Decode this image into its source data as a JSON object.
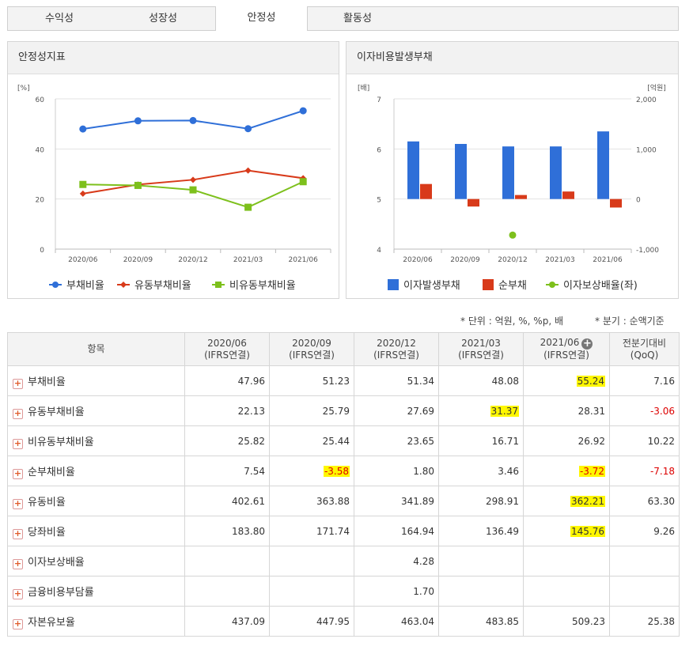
{
  "tabs": [
    "수익성",
    "성장성",
    "안정성",
    "활동성"
  ],
  "active_tab": 2,
  "left_panel": {
    "title": "안정성지표"
  },
  "right_panel": {
    "title": "이자비용발생부채"
  },
  "notes": {
    "unit": "* 단위 : 억원, %, %p, 배",
    "quarter": "* 분기 : 순액기준"
  },
  "colors": {
    "blue": "#2f6fd8",
    "red": "#d83a1a",
    "green": "#7dc01c",
    "highlight": "#fff700",
    "negative": "#dd0000"
  },
  "chart_data": [
    {
      "type": "line",
      "title": "안정성지표",
      "categories": [
        "2020/06",
        "2020/09",
        "2020/12",
        "2021/03",
        "2021/06"
      ],
      "ylabel": "[%]",
      "ylim": [
        0,
        60
      ],
      "yticks": [
        0,
        20,
        40,
        60
      ],
      "grid": true,
      "legend": "bottom",
      "series": [
        {
          "name": "부채비율",
          "color": "#2f6fd8",
          "marker": "circle",
          "values": [
            47.96,
            51.23,
            51.34,
            48.08,
            55.24
          ]
        },
        {
          "name": "유동부채비율",
          "color": "#d83a1a",
          "marker": "diamond",
          "values": [
            22.13,
            25.79,
            27.69,
            31.37,
            28.31
          ]
        },
        {
          "name": "비유동부채비율",
          "color": "#7dc01c",
          "marker": "square",
          "values": [
            25.82,
            25.44,
            23.65,
            16.71,
            26.92
          ]
        }
      ]
    },
    {
      "type": "bar",
      "title": "이자비용발생부채",
      "categories": [
        "2020/06",
        "2020/09",
        "2020/12",
        "2021/03",
        "2021/06"
      ],
      "ylabel_left": "[배]",
      "ylabel_right": "[억원]",
      "ylim_left": [
        4,
        7
      ],
      "yticks_left": [
        4,
        5,
        6,
        7
      ],
      "ylim_right": [
        -1000,
        2000
      ],
      "yticks_right": [
        "-1,000",
        "0",
        "1,000",
        "2,000"
      ],
      "legend": "bottom",
      "series": [
        {
          "name": "이자발생부채",
          "color": "#2f6fd8",
          "axis": "right",
          "values": [
            1150,
            1100,
            1050,
            1050,
            1350
          ]
        },
        {
          "name": "순부채",
          "color": "#d83a1a",
          "axis": "right",
          "values": [
            300,
            -150,
            80,
            150,
            -170
          ]
        },
        {
          "name": "이자보상배율(좌)",
          "color": "#7dc01c",
          "axis": "left",
          "type": "scatter",
          "values": [
            null,
            null,
            4.28,
            null,
            null
          ]
        }
      ]
    }
  ],
  "table": {
    "headers": [
      {
        "l1": "항목",
        "l2": ""
      },
      {
        "l1": "2020/06",
        "l2": "(IFRS연결)"
      },
      {
        "l1": "2020/09",
        "l2": "(IFRS연결)"
      },
      {
        "l1": "2020/12",
        "l2": "(IFRS연결)"
      },
      {
        "l1": "2021/03",
        "l2": "(IFRS연결)"
      },
      {
        "l1": "2021/06",
        "l2": "(IFRS연결)"
      },
      {
        "l1": "전분기대비",
        "l2": "(QoQ)"
      }
    ],
    "rows": [
      {
        "name": "부채비율",
        "values": [
          "47.96",
          "51.23",
          "51.34",
          "48.08",
          "55.24",
          "7.16"
        ]
      },
      {
        "name": "유동부채비율",
        "values": [
          "22.13",
          "25.79",
          "27.69",
          "31.37",
          "28.31",
          "-3.06"
        ]
      },
      {
        "name": "비유동부채비율",
        "values": [
          "25.82",
          "25.44",
          "23.65",
          "16.71",
          "26.92",
          "10.22"
        ]
      },
      {
        "name": "순부채비율",
        "values": [
          "7.54",
          "-3.58",
          "1.80",
          "3.46",
          "-3.72",
          "-7.18"
        ]
      },
      {
        "name": "유동비율",
        "values": [
          "402.61",
          "363.88",
          "341.89",
          "298.91",
          "362.21",
          "63.30"
        ]
      },
      {
        "name": "당좌비율",
        "values": [
          "183.80",
          "171.74",
          "164.94",
          "136.49",
          "145.76",
          "9.26"
        ]
      },
      {
        "name": "이자보상배율",
        "values": [
          "",
          "",
          "4.28",
          "",
          "",
          ""
        ]
      },
      {
        "name": "금융비용부담률",
        "values": [
          "",
          "",
          "1.70",
          "",
          "",
          ""
        ]
      },
      {
        "name": "자본유보율",
        "values": [
          "437.09",
          "447.95",
          "463.04",
          "483.85",
          "509.23",
          "25.38"
        ]
      }
    ],
    "highlighted_cells": [
      [
        0,
        4
      ],
      [
        1,
        3
      ],
      [
        3,
        1
      ],
      [
        3,
        4
      ],
      [
        4,
        4
      ],
      [
        5,
        4
      ]
    ],
    "negative_qoq": [
      1,
      3
    ]
  }
}
